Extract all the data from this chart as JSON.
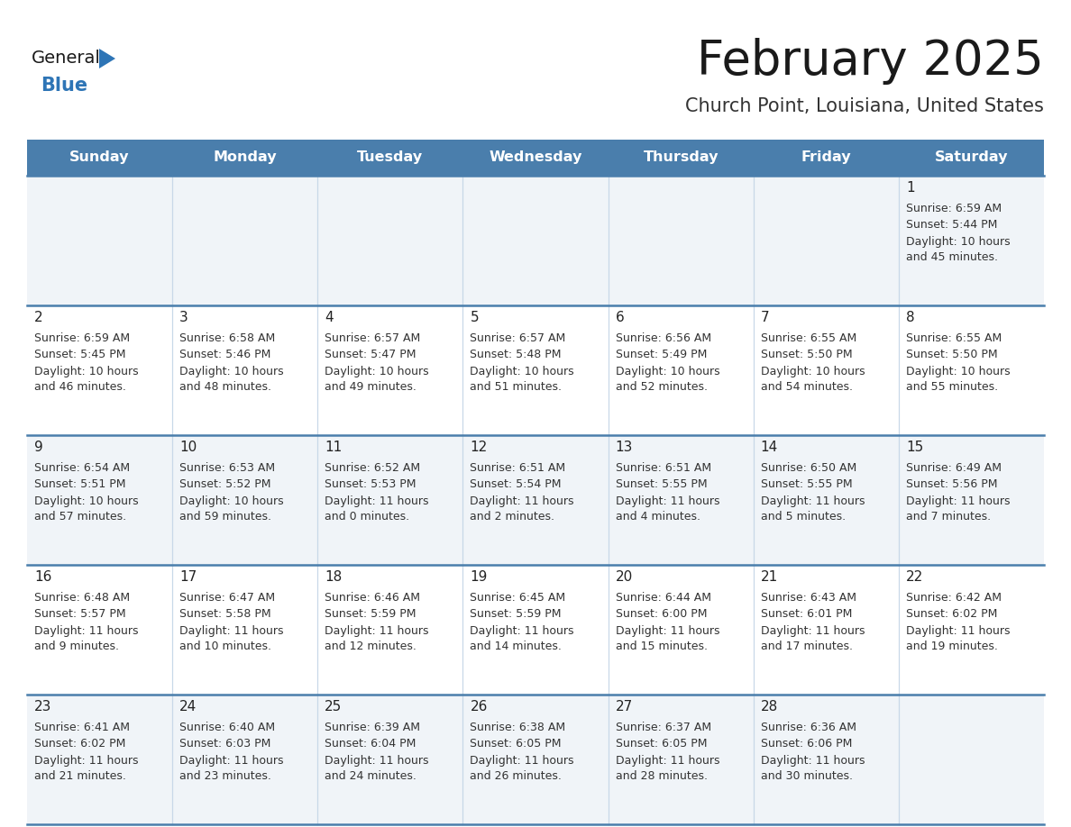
{
  "title": "February 2025",
  "subtitle": "Church Point, Louisiana, United States",
  "header_color": "#4A7EAC",
  "header_text_color": "#ffffff",
  "day_names": [
    "Sunday",
    "Monday",
    "Tuesday",
    "Wednesday",
    "Thursday",
    "Friday",
    "Saturday"
  ],
  "background_color": "#ffffff",
  "cell_bg_odd": "#f0f4f8",
  "cell_bg_even": "#ffffff",
  "divider_color": "#4A7EAC",
  "grid_color": "#c8d8e8",
  "text_color": "#333333",
  "day_num_color": "#222222",
  "logo_general_color": "#1a1a1a",
  "logo_blue_color": "#2e75b6",
  "title_color": "#1a1a1a",
  "subtitle_color": "#333333",
  "days": [
    {
      "date": 1,
      "col": 6,
      "row": 0,
      "sunrise": "6:59 AM",
      "sunset": "5:44 PM",
      "daylight": "10 hours and 45 minutes"
    },
    {
      "date": 2,
      "col": 0,
      "row": 1,
      "sunrise": "6:59 AM",
      "sunset": "5:45 PM",
      "daylight": "10 hours and 46 minutes"
    },
    {
      "date": 3,
      "col": 1,
      "row": 1,
      "sunrise": "6:58 AM",
      "sunset": "5:46 PM",
      "daylight": "10 hours and 48 minutes"
    },
    {
      "date": 4,
      "col": 2,
      "row": 1,
      "sunrise": "6:57 AM",
      "sunset": "5:47 PM",
      "daylight": "10 hours and 49 minutes"
    },
    {
      "date": 5,
      "col": 3,
      "row": 1,
      "sunrise": "6:57 AM",
      "sunset": "5:48 PM",
      "daylight": "10 hours and 51 minutes"
    },
    {
      "date": 6,
      "col": 4,
      "row": 1,
      "sunrise": "6:56 AM",
      "sunset": "5:49 PM",
      "daylight": "10 hours and 52 minutes"
    },
    {
      "date": 7,
      "col": 5,
      "row": 1,
      "sunrise": "6:55 AM",
      "sunset": "5:50 PM",
      "daylight": "10 hours and 54 minutes"
    },
    {
      "date": 8,
      "col": 6,
      "row": 1,
      "sunrise": "6:55 AM",
      "sunset": "5:50 PM",
      "daylight": "10 hours and 55 minutes"
    },
    {
      "date": 9,
      "col": 0,
      "row": 2,
      "sunrise": "6:54 AM",
      "sunset": "5:51 PM",
      "daylight": "10 hours and 57 minutes"
    },
    {
      "date": 10,
      "col": 1,
      "row": 2,
      "sunrise": "6:53 AM",
      "sunset": "5:52 PM",
      "daylight": "10 hours and 59 minutes"
    },
    {
      "date": 11,
      "col": 2,
      "row": 2,
      "sunrise": "6:52 AM",
      "sunset": "5:53 PM",
      "daylight": "11 hours and 0 minutes"
    },
    {
      "date": 12,
      "col": 3,
      "row": 2,
      "sunrise": "6:51 AM",
      "sunset": "5:54 PM",
      "daylight": "11 hours and 2 minutes"
    },
    {
      "date": 13,
      "col": 4,
      "row": 2,
      "sunrise": "6:51 AM",
      "sunset": "5:55 PM",
      "daylight": "11 hours and 4 minutes"
    },
    {
      "date": 14,
      "col": 5,
      "row": 2,
      "sunrise": "6:50 AM",
      "sunset": "5:55 PM",
      "daylight": "11 hours and 5 minutes"
    },
    {
      "date": 15,
      "col": 6,
      "row": 2,
      "sunrise": "6:49 AM",
      "sunset": "5:56 PM",
      "daylight": "11 hours and 7 minutes"
    },
    {
      "date": 16,
      "col": 0,
      "row": 3,
      "sunrise": "6:48 AM",
      "sunset": "5:57 PM",
      "daylight": "11 hours and 9 minutes"
    },
    {
      "date": 17,
      "col": 1,
      "row": 3,
      "sunrise": "6:47 AM",
      "sunset": "5:58 PM",
      "daylight": "11 hours and 10 minutes"
    },
    {
      "date": 18,
      "col": 2,
      "row": 3,
      "sunrise": "6:46 AM",
      "sunset": "5:59 PM",
      "daylight": "11 hours and 12 minutes"
    },
    {
      "date": 19,
      "col": 3,
      "row": 3,
      "sunrise": "6:45 AM",
      "sunset": "5:59 PM",
      "daylight": "11 hours and 14 minutes"
    },
    {
      "date": 20,
      "col": 4,
      "row": 3,
      "sunrise": "6:44 AM",
      "sunset": "6:00 PM",
      "daylight": "11 hours and 15 minutes"
    },
    {
      "date": 21,
      "col": 5,
      "row": 3,
      "sunrise": "6:43 AM",
      "sunset": "6:01 PM",
      "daylight": "11 hours and 17 minutes"
    },
    {
      "date": 22,
      "col": 6,
      "row": 3,
      "sunrise": "6:42 AM",
      "sunset": "6:02 PM",
      "daylight": "11 hours and 19 minutes"
    },
    {
      "date": 23,
      "col": 0,
      "row": 4,
      "sunrise": "6:41 AM",
      "sunset": "6:02 PM",
      "daylight": "11 hours and 21 minutes"
    },
    {
      "date": 24,
      "col": 1,
      "row": 4,
      "sunrise": "6:40 AM",
      "sunset": "6:03 PM",
      "daylight": "11 hours and 23 minutes"
    },
    {
      "date": 25,
      "col": 2,
      "row": 4,
      "sunrise": "6:39 AM",
      "sunset": "6:04 PM",
      "daylight": "11 hours and 24 minutes"
    },
    {
      "date": 26,
      "col": 3,
      "row": 4,
      "sunrise": "6:38 AM",
      "sunset": "6:05 PM",
      "daylight": "11 hours and 26 minutes"
    },
    {
      "date": 27,
      "col": 4,
      "row": 4,
      "sunrise": "6:37 AM",
      "sunset": "6:05 PM",
      "daylight": "11 hours and 28 minutes"
    },
    {
      "date": 28,
      "col": 5,
      "row": 4,
      "sunrise": "6:36 AM",
      "sunset": "6:06 PM",
      "daylight": "11 hours and 30 minutes"
    }
  ]
}
